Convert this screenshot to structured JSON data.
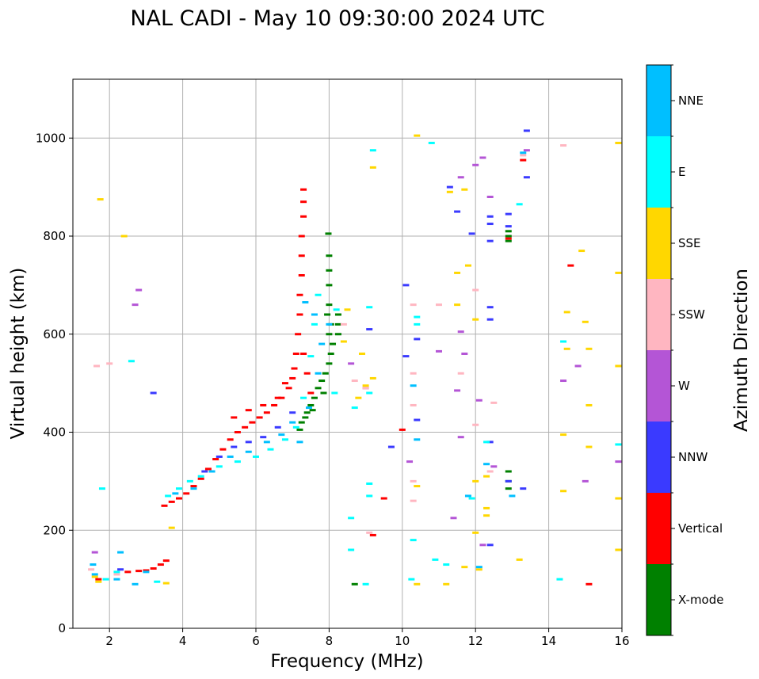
{
  "chart_data": {
    "type": "scatter",
    "title": "NAL CADI - May 10 09:30:00 2024 UTC",
    "xlabel": "Frequency (MHz)",
    "ylabel": "Virtual height (km)",
    "xlim": [
      1,
      16
    ],
    "ylim": [
      0,
      1120
    ],
    "xticks": [
      2,
      4,
      6,
      8,
      10,
      12,
      14,
      16
    ],
    "yticks": [
      0,
      200,
      400,
      600,
      800,
      1000
    ],
    "grid": true,
    "colorbar": {
      "label": "Azimuth Direction",
      "categories": [
        "X-mode",
        "Vertical",
        "NNW",
        "W",
        "SSW",
        "SSE",
        "E",
        "NNE"
      ],
      "colors": [
        "#008000",
        "#ff0000",
        "#3a3aff",
        "#b455d6",
        "#ffb6c1",
        "#ffd700",
        "#00ffff",
        "#00bfff"
      ]
    },
    "series": [
      {
        "name": "X-mode",
        "points": [
          [
            7.25,
            420
          ],
          [
            7.4,
            440
          ],
          [
            7.5,
            455
          ],
          [
            7.6,
            470
          ],
          [
            7.7,
            490
          ],
          [
            7.8,
            505
          ],
          [
            7.9,
            520
          ],
          [
            8.0,
            540
          ],
          [
            8.05,
            560
          ],
          [
            8.1,
            580
          ],
          [
            8.0,
            600
          ],
          [
            8.05,
            620
          ],
          [
            7.95,
            640
          ],
          [
            8.0,
            660
          ],
          [
            8.0,
            700
          ],
          [
            8.0,
            730
          ],
          [
            8.0,
            760
          ],
          [
            7.98,
            805
          ],
          [
            7.2,
            405
          ],
          [
            7.35,
            430
          ],
          [
            7.55,
            445
          ],
          [
            7.85,
            480
          ],
          [
            8.25,
            600
          ],
          [
            8.25,
            620
          ],
          [
            8.25,
            640
          ],
          [
            12.9,
            810
          ],
          [
            12.9,
            800
          ],
          [
            12.9,
            790
          ],
          [
            12.9,
            320
          ],
          [
            12.9,
            300
          ],
          [
            12.9,
            285
          ],
          [
            8.7,
            90
          ]
        ]
      },
      {
        "name": "Vertical",
        "points": [
          [
            3.5,
            250
          ],
          [
            3.7,
            258
          ],
          [
            3.9,
            265
          ],
          [
            4.1,
            275
          ],
          [
            4.3,
            290
          ],
          [
            4.5,
            305
          ],
          [
            4.7,
            325
          ],
          [
            4.9,
            345
          ],
          [
            5.1,
            365
          ],
          [
            5.3,
            385
          ],
          [
            5.5,
            400
          ],
          [
            5.7,
            410
          ],
          [
            5.9,
            420
          ],
          [
            6.1,
            430
          ],
          [
            6.3,
            440
          ],
          [
            6.5,
            455
          ],
          [
            6.7,
            470
          ],
          [
            6.9,
            490
          ],
          [
            7.0,
            510
          ],
          [
            7.05,
            530
          ],
          [
            7.1,
            560
          ],
          [
            7.15,
            600
          ],
          [
            7.2,
            640
          ],
          [
            7.2,
            680
          ],
          [
            7.25,
            720
          ],
          [
            7.25,
            760
          ],
          [
            7.25,
            800
          ],
          [
            7.3,
            840
          ],
          [
            7.3,
            870
          ],
          [
            7.3,
            895
          ],
          [
            2.5,
            115
          ],
          [
            2.8,
            117
          ],
          [
            3.0,
            118
          ],
          [
            3.2,
            122
          ],
          [
            3.4,
            130
          ],
          [
            3.55,
            138
          ],
          [
            5.4,
            430
          ],
          [
            5.8,
            445
          ],
          [
            6.2,
            455
          ],
          [
            6.6,
            470
          ],
          [
            6.8,
            500
          ],
          [
            7.3,
            560
          ],
          [
            7.4,
            520
          ],
          [
            7.5,
            480
          ],
          [
            1.7,
            100
          ],
          [
            10.0,
            405
          ],
          [
            12.9,
            795
          ],
          [
            13.3,
            955
          ],
          [
            14.6,
            740
          ],
          [
            15.1,
            90
          ],
          [
            9.2,
            190
          ],
          [
            9.5,
            265
          ]
        ]
      },
      {
        "name": "NNW",
        "points": [
          [
            4.6,
            320
          ],
          [
            5.0,
            350
          ],
          [
            5.4,
            370
          ],
          [
            5.8,
            380
          ],
          [
            6.2,
            390
          ],
          [
            6.6,
            410
          ],
          [
            7.0,
            440
          ],
          [
            13.4,
            1015
          ],
          [
            13.4,
            920
          ],
          [
            12.9,
            845
          ],
          [
            12.9,
            820
          ],
          [
            12.4,
            840
          ],
          [
            12.4,
            825
          ],
          [
            12.4,
            790
          ],
          [
            12.4,
            655
          ],
          [
            12.4,
            630
          ],
          [
            12.4,
            380
          ],
          [
            12.4,
            170
          ],
          [
            10.1,
            700
          ],
          [
            10.4,
            590
          ],
          [
            10.4,
            425
          ],
          [
            9.7,
            370
          ],
          [
            11.3,
            900
          ],
          [
            11.5,
            850
          ],
          [
            10.1,
            555
          ],
          [
            9.1,
            610
          ],
          [
            11.9,
            805
          ],
          [
            13.3,
            285
          ],
          [
            2.3,
            120
          ],
          [
            3.2,
            480
          ],
          [
            12.9,
            300
          ]
        ]
      },
      {
        "name": "W",
        "points": [
          [
            2.8,
            690
          ],
          [
            2.7,
            660
          ],
          [
            1.6,
            155
          ],
          [
            12.4,
            880
          ],
          [
            11.6,
            920
          ],
          [
            12.0,
            945
          ],
          [
            9.0,
            490
          ],
          [
            8.6,
            540
          ],
          [
            10.2,
            340
          ],
          [
            11.0,
            565
          ],
          [
            11.7,
            560
          ],
          [
            12.1,
            465
          ],
          [
            11.6,
            390
          ],
          [
            11.4,
            225
          ],
          [
            12.5,
            330
          ],
          [
            14.4,
            505
          ],
          [
            14.8,
            535
          ],
          [
            15.0,
            300
          ],
          [
            15.9,
            340
          ],
          [
            12.2,
            170
          ],
          [
            12.2,
            960
          ],
          [
            13.4,
            975
          ],
          [
            11.5,
            485
          ],
          [
            11.6,
            605
          ]
        ]
      },
      {
        "name": "SSW",
        "points": [
          [
            1.5,
            120
          ],
          [
            2.2,
            110
          ],
          [
            8.7,
            505
          ],
          [
            8.4,
            620
          ],
          [
            9.0,
            490
          ],
          [
            10.3,
            520
          ],
          [
            10.3,
            455
          ],
          [
            10.3,
            300
          ],
          [
            10.3,
            260
          ],
          [
            12.0,
            690
          ],
          [
            12.0,
            415
          ],
          [
            12.4,
            320
          ],
          [
            13.3,
            965
          ],
          [
            14.4,
            985
          ],
          [
            9.1,
            195
          ],
          [
            10.3,
            660
          ],
          [
            11.6,
            520
          ],
          [
            11.0,
            660
          ],
          [
            1.65,
            535
          ],
          [
            2.0,
            540
          ],
          [
            12.5,
            460
          ]
        ]
      },
      {
        "name": "SSE",
        "points": [
          [
            1.6,
            105
          ],
          [
            1.7,
            95
          ],
          [
            2.4,
            800
          ],
          [
            1.75,
            875
          ],
          [
            3.55,
            92
          ],
          [
            3.7,
            205
          ],
          [
            8.5,
            650
          ],
          [
            8.9,
            560
          ],
          [
            9.0,
            495
          ],
          [
            9.2,
            940
          ],
          [
            9.2,
            510
          ],
          [
            10.4,
            290
          ],
          [
            10.4,
            90
          ],
          [
            10.4,
            1005
          ],
          [
            11.5,
            725
          ],
          [
            11.5,
            660
          ],
          [
            11.7,
            895
          ],
          [
            11.8,
            740
          ],
          [
            11.3,
            890
          ],
          [
            12.0,
            630
          ],
          [
            12.0,
            300
          ],
          [
            12.0,
            195
          ],
          [
            12.3,
            310
          ],
          [
            12.3,
            245
          ],
          [
            12.3,
            230
          ],
          [
            13.2,
            140
          ],
          [
            14.4,
            395
          ],
          [
            14.4,
            280
          ],
          [
            14.5,
            570
          ],
          [
            14.5,
            645
          ],
          [
            14.9,
            770
          ],
          [
            15.0,
            625
          ],
          [
            15.1,
            570
          ],
          [
            15.1,
            455
          ],
          [
            15.1,
            370
          ],
          [
            15.9,
            990
          ],
          [
            15.9,
            725
          ],
          [
            15.9,
            535
          ],
          [
            15.9,
            265
          ],
          [
            15.9,
            160
          ],
          [
            11.2,
            90
          ],
          [
            11.7,
            125
          ],
          [
            12.1,
            120
          ],
          [
            8.4,
            585
          ],
          [
            8.8,
            470
          ]
        ]
      },
      {
        "name": "E",
        "points": [
          [
            1.9,
            100
          ],
          [
            2.2,
            115
          ],
          [
            3.3,
            95
          ],
          [
            3.6,
            270
          ],
          [
            3.9,
            285
          ],
          [
            4.2,
            300
          ],
          [
            4.5,
            310
          ],
          [
            5.0,
            330
          ],
          [
            5.5,
            340
          ],
          [
            6.0,
            350
          ],
          [
            6.4,
            365
          ],
          [
            6.8,
            385
          ],
          [
            7.1,
            410
          ],
          [
            7.3,
            470
          ],
          [
            7.5,
            555
          ],
          [
            7.6,
            620
          ],
          [
            7.7,
            680
          ],
          [
            8.15,
            480
          ],
          [
            8.2,
            650
          ],
          [
            8.7,
            450
          ],
          [
            9.2,
            975
          ],
          [
            9.1,
            655
          ],
          [
            9.1,
            480
          ],
          [
            9.1,
            295
          ],
          [
            9.1,
            270
          ],
          [
            8.6,
            225
          ],
          [
            8.6,
            160
          ],
          [
            9.0,
            90
          ],
          [
            10.25,
            100
          ],
          [
            10.3,
            180
          ],
          [
            10.4,
            620
          ],
          [
            10.4,
            635
          ],
          [
            10.8,
            990
          ],
          [
            10.9,
            140
          ],
          [
            11.2,
            130
          ],
          [
            12.3,
            380
          ],
          [
            13.2,
            865
          ],
          [
            14.3,
            100
          ],
          [
            14.4,
            585
          ],
          [
            15.9,
            375
          ],
          [
            1.8,
            285
          ],
          [
            2.6,
            545
          ],
          [
            11.9,
            265
          ]
        ]
      },
      {
        "name": "NNE",
        "points": [
          [
            1.55,
            130
          ],
          [
            1.6,
            110
          ],
          [
            2.2,
            100
          ],
          [
            3.0,
            115
          ],
          [
            3.8,
            275
          ],
          [
            4.3,
            285
          ],
          [
            4.8,
            320
          ],
          [
            5.3,
            350
          ],
          [
            5.8,
            360
          ],
          [
            6.3,
            380
          ],
          [
            6.7,
            395
          ],
          [
            7.0,
            420
          ],
          [
            7.2,
            380
          ],
          [
            7.45,
            450
          ],
          [
            7.7,
            520
          ],
          [
            7.8,
            580
          ],
          [
            7.6,
            640
          ],
          [
            8.0,
            620
          ],
          [
            10.3,
            495
          ],
          [
            10.4,
            385
          ],
          [
            12.1,
            125
          ],
          [
            12.3,
            335
          ],
          [
            13.3,
            970
          ],
          [
            13.0,
            270
          ],
          [
            11.8,
            270
          ],
          [
            2.3,
            155
          ],
          [
            2.7,
            90
          ],
          [
            7.35,
            665
          ]
        ]
      }
    ]
  }
}
